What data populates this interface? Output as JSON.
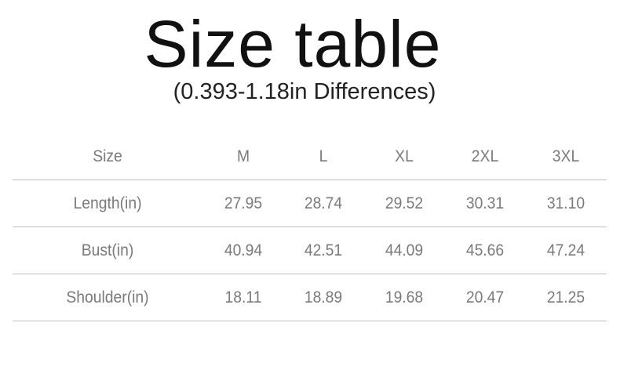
{
  "title": "Size table",
  "subtitle": "(0.393-1.18in Differences)",
  "table": {
    "headers": [
      "Size",
      "M",
      "L",
      "XL",
      "2XL",
      "3XL"
    ],
    "rows": [
      [
        "Length(in)",
        "27.95",
        "28.74",
        "29.52",
        "30.31",
        "31.10"
      ],
      [
        "Bust(in)",
        "40.94",
        "42.51",
        "44.09",
        "45.66",
        "47.24"
      ],
      [
        "Shoulder(in)",
        "18.11",
        "18.89",
        "19.68",
        "20.47",
        "21.25"
      ]
    ]
  }
}
